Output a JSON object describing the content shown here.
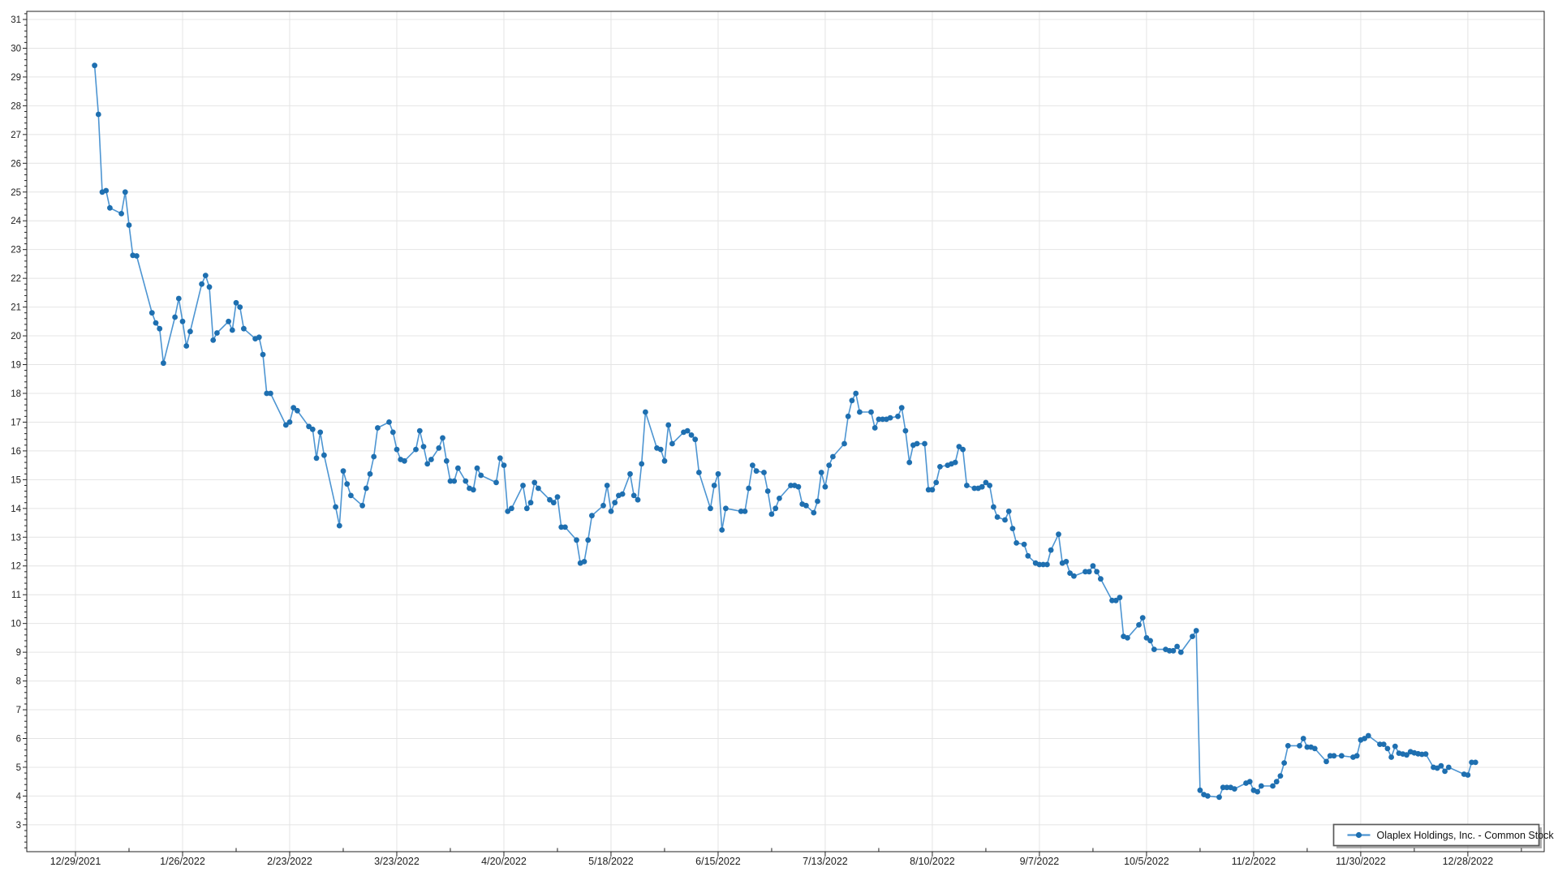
{
  "chart_data": {
    "type": "line",
    "title": "",
    "xlabel": "",
    "ylabel": "",
    "grid": true,
    "legend_position": "bottom-right",
    "series": [
      {
        "name": "Olaplex Holdings, Inc. - Common Stock",
        "x_unit": "days since 12/29/2021",
        "y_unit": "USD",
        "points": [
          [
            5,
            29.4
          ],
          [
            6,
            27.7
          ],
          [
            7,
            25.0
          ],
          [
            8,
            25.05
          ],
          [
            9,
            24.45
          ],
          [
            12,
            24.25
          ],
          [
            13,
            25.0
          ],
          [
            14,
            23.85
          ],
          [
            15,
            22.8
          ],
          [
            16,
            22.78
          ],
          [
            20,
            20.8
          ],
          [
            21,
            20.45
          ],
          [
            22,
            20.25
          ],
          [
            23,
            19.05
          ],
          [
            26,
            20.65
          ],
          [
            27,
            21.3
          ],
          [
            28,
            20.5
          ],
          [
            29,
            19.65
          ],
          [
            30,
            20.15
          ],
          [
            33,
            21.8
          ],
          [
            34,
            22.1
          ],
          [
            35,
            21.7
          ],
          [
            36,
            19.85
          ],
          [
            37,
            20.1
          ],
          [
            40,
            20.5
          ],
          [
            41,
            20.2
          ],
          [
            42,
            21.15
          ],
          [
            43,
            21.0
          ],
          [
            44,
            20.25
          ],
          [
            47,
            19.9
          ],
          [
            48,
            19.95
          ],
          [
            49,
            19.35
          ],
          [
            50,
            18.0
          ],
          [
            51,
            18.0
          ],
          [
            55,
            16.9
          ],
          [
            56,
            17.0
          ],
          [
            57,
            17.5
          ],
          [
            58,
            17.4
          ],
          [
            61,
            16.85
          ],
          [
            62,
            16.75
          ],
          [
            63,
            15.75
          ],
          [
            64,
            16.65
          ],
          [
            65,
            15.85
          ],
          [
            68,
            14.05
          ],
          [
            69,
            13.4
          ],
          [
            70,
            15.3
          ],
          [
            71,
            14.85
          ],
          [
            72,
            14.45
          ],
          [
            75,
            14.1
          ],
          [
            76,
            14.7
          ],
          [
            77,
            15.2
          ],
          [
            78,
            15.8
          ],
          [
            79,
            16.8
          ],
          [
            82,
            17.0
          ],
          [
            83,
            16.65
          ],
          [
            84,
            16.05
          ],
          [
            85,
            15.7
          ],
          [
            86,
            15.65
          ],
          [
            89,
            16.05
          ],
          [
            90,
            16.7
          ],
          [
            91,
            16.15
          ],
          [
            92,
            15.55
          ],
          [
            93,
            15.7
          ],
          [
            95,
            16.1
          ],
          [
            96,
            16.45
          ],
          [
            97,
            15.65
          ],
          [
            98,
            14.95
          ],
          [
            99,
            14.95
          ],
          [
            100,
            15.4
          ],
          [
            102,
            14.95
          ],
          [
            103,
            14.7
          ],
          [
            104,
            14.65
          ],
          [
            105,
            15.4
          ],
          [
            106,
            15.15
          ],
          [
            110,
            14.9
          ],
          [
            111,
            15.75
          ],
          [
            112,
            15.5
          ],
          [
            113,
            13.9
          ],
          [
            114,
            14.0
          ],
          [
            117,
            14.8
          ],
          [
            118,
            14.0
          ],
          [
            119,
            14.2
          ],
          [
            120,
            14.9
          ],
          [
            121,
            14.7
          ],
          [
            124,
            14.3
          ],
          [
            125,
            14.2
          ],
          [
            126,
            14.4
          ],
          [
            127,
            13.35
          ],
          [
            128,
            13.35
          ],
          [
            131,
            12.9
          ],
          [
            132,
            12.1
          ],
          [
            133,
            12.15
          ],
          [
            134,
            12.9
          ],
          [
            135,
            13.75
          ],
          [
            138,
            14.1
          ],
          [
            139,
            14.8
          ],
          [
            140,
            13.9
          ],
          [
            141,
            14.2
          ],
          [
            142,
            14.45
          ],
          [
            143,
            14.5
          ],
          [
            145,
            15.2
          ],
          [
            146,
            14.45
          ],
          [
            147,
            14.3
          ],
          [
            148,
            15.55
          ],
          [
            149,
            17.35
          ],
          [
            152,
            16.1
          ],
          [
            153,
            16.05
          ],
          [
            154,
            15.65
          ],
          [
            155,
            16.9
          ],
          [
            156,
            16.25
          ],
          [
            159,
            16.65
          ],
          [
            160,
            16.7
          ],
          [
            161,
            16.55
          ],
          [
            162,
            16.4
          ],
          [
            163,
            15.25
          ],
          [
            166,
            14.0
          ],
          [
            167,
            14.8
          ],
          [
            168,
            15.2
          ],
          [
            169,
            13.25
          ],
          [
            170,
            14.0
          ],
          [
            174,
            13.9
          ],
          [
            175,
            13.9
          ],
          [
            176,
            14.7
          ],
          [
            177,
            15.5
          ],
          [
            178,
            15.3
          ],
          [
            180,
            15.25
          ],
          [
            181,
            14.6
          ],
          [
            182,
            13.8
          ],
          [
            183,
            14.0
          ],
          [
            184,
            14.35
          ],
          [
            187,
            14.8
          ],
          [
            188,
            14.8
          ],
          [
            189,
            14.75
          ],
          [
            190,
            14.15
          ],
          [
            191,
            14.1
          ],
          [
            193,
            13.85
          ],
          [
            194,
            14.25
          ],
          [
            195,
            15.25
          ],
          [
            196,
            14.75
          ],
          [
            197,
            15.5
          ],
          [
            198,
            15.8
          ],
          [
            201,
            16.25
          ],
          [
            202,
            17.2
          ],
          [
            203,
            17.75
          ],
          [
            204,
            18.0
          ],
          [
            205,
            17.35
          ],
          [
            208,
            17.35
          ],
          [
            209,
            16.8
          ],
          [
            210,
            17.1
          ],
          [
            211,
            17.1
          ],
          [
            212,
            17.1
          ],
          [
            213,
            17.15
          ],
          [
            215,
            17.2
          ],
          [
            216,
            17.5
          ],
          [
            217,
            16.7
          ],
          [
            218,
            15.6
          ],
          [
            219,
            16.2
          ],
          [
            220,
            16.25
          ],
          [
            222,
            16.25
          ],
          [
            223,
            14.65
          ],
          [
            224,
            14.65
          ],
          [
            225,
            14.9
          ],
          [
            226,
            15.45
          ],
          [
            228,
            15.5
          ],
          [
            229,
            15.55
          ],
          [
            230,
            15.6
          ],
          [
            231,
            16.15
          ],
          [
            232,
            16.05
          ],
          [
            233,
            14.8
          ],
          [
            235,
            14.7
          ],
          [
            236,
            14.7
          ],
          [
            237,
            14.75
          ],
          [
            238,
            14.9
          ],
          [
            239,
            14.8
          ],
          [
            240,
            14.05
          ],
          [
            241,
            13.7
          ],
          [
            243,
            13.6
          ],
          [
            244,
            13.9
          ],
          [
            245,
            13.3
          ],
          [
            246,
            12.8
          ],
          [
            248,
            12.75
          ],
          [
            249,
            12.35
          ],
          [
            251,
            12.1
          ],
          [
            252,
            12.05
          ],
          [
            253,
            12.05
          ],
          [
            254,
            12.05
          ],
          [
            255,
            12.55
          ],
          [
            257,
            13.1
          ],
          [
            258,
            12.1
          ],
          [
            259,
            12.15
          ],
          [
            260,
            11.75
          ],
          [
            261,
            11.65
          ],
          [
            264,
            11.8
          ],
          [
            265,
            11.8
          ],
          [
            266,
            12.0
          ],
          [
            267,
            11.8
          ],
          [
            268,
            11.55
          ],
          [
            271,
            10.8
          ],
          [
            272,
            10.8
          ],
          [
            273,
            10.9
          ],
          [
            274,
            9.55
          ],
          [
            275,
            9.5
          ],
          [
            278,
            9.95
          ],
          [
            279,
            10.2
          ],
          [
            280,
            9.5
          ],
          [
            281,
            9.4
          ],
          [
            282,
            9.1
          ],
          [
            285,
            9.1
          ],
          [
            286,
            9.05
          ],
          [
            287,
            9.05
          ],
          [
            288,
            9.2
          ],
          [
            289,
            9.0
          ],
          [
            292,
            9.55
          ],
          [
            293,
            9.75
          ],
          [
            294,
            4.2
          ],
          [
            295,
            4.05
          ],
          [
            296,
            4.0
          ],
          [
            299,
            3.96
          ],
          [
            300,
            4.3
          ],
          [
            301,
            4.3
          ],
          [
            302,
            4.3
          ],
          [
            303,
            4.25
          ],
          [
            306,
            4.45
          ],
          [
            307,
            4.5
          ],
          [
            308,
            4.2
          ],
          [
            309,
            4.15
          ],
          [
            310,
            4.35
          ],
          [
            313,
            4.35
          ],
          [
            314,
            4.5
          ],
          [
            315,
            4.7
          ],
          [
            316,
            5.15
          ],
          [
            317,
            5.75
          ],
          [
            320,
            5.75
          ],
          [
            321,
            6.0
          ],
          [
            322,
            5.7
          ],
          [
            323,
            5.7
          ],
          [
            324,
            5.65
          ],
          [
            327,
            5.2
          ],
          [
            328,
            5.4
          ],
          [
            329,
            5.4
          ],
          [
            331,
            5.4
          ],
          [
            334,
            5.35
          ],
          [
            335,
            5.4
          ],
          [
            336,
            5.95
          ],
          [
            337,
            6.0
          ],
          [
            338,
            6.1
          ],
          [
            341,
            5.8
          ],
          [
            342,
            5.8
          ],
          [
            343,
            5.65
          ],
          [
            344,
            5.35
          ],
          [
            345,
            5.73
          ],
          [
            346,
            5.49
          ],
          [
            347,
            5.46
          ],
          [
            348,
            5.43
          ],
          [
            349,
            5.54
          ],
          [
            350,
            5.5
          ],
          [
            351,
            5.47
          ],
          [
            352,
            5.45
          ],
          [
            353,
            5.46
          ],
          [
            355,
            5.0
          ],
          [
            356,
            4.97
          ],
          [
            357,
            5.05
          ],
          [
            358,
            4.86
          ],
          [
            359,
            5.0
          ],
          [
            363,
            4.76
          ],
          [
            364,
            4.73
          ],
          [
            365,
            5.17
          ],
          [
            366,
            5.17
          ]
        ]
      }
    ],
    "x_axis": {
      "tick_labels": [
        "12/29/2021",
        "1/26/2022",
        "2/23/2022",
        "3/23/2022",
        "4/20/2022",
        "5/18/2022",
        "6/15/2022",
        "7/13/2022",
        "8/10/2022",
        "9/7/2022",
        "10/5/2022",
        "11/2/2022",
        "11/30/2022",
        "12/28/2022"
      ],
      "tick_label_days": [
        0,
        28,
        56,
        84,
        112,
        140,
        168,
        196,
        224,
        252,
        280,
        308,
        336,
        364
      ],
      "minor_tick_days_interval": 14
    },
    "y_axis": {
      "tick_min": 3,
      "tick_max": 31,
      "tick_step": 1,
      "minor_tick_step": 0.2,
      "tick_labels": [
        3,
        4,
        5,
        6,
        7,
        8,
        9,
        10,
        11,
        12,
        13,
        14,
        15,
        16,
        17,
        18,
        19,
        20,
        21,
        22,
        23,
        24,
        25,
        26,
        27,
        28,
        29,
        30,
        31
      ]
    },
    "legend": {
      "entries": [
        "Olaplex Holdings, Inc. - Common Stock"
      ]
    },
    "colors": {
      "line": "#4d95d2",
      "marker": "#1e6fb0",
      "grid": "#e4e4e4",
      "axis": "#222222",
      "text": "#1d1d1d",
      "legend_border": "#5a5a5a",
      "background": "#ffffff"
    }
  }
}
